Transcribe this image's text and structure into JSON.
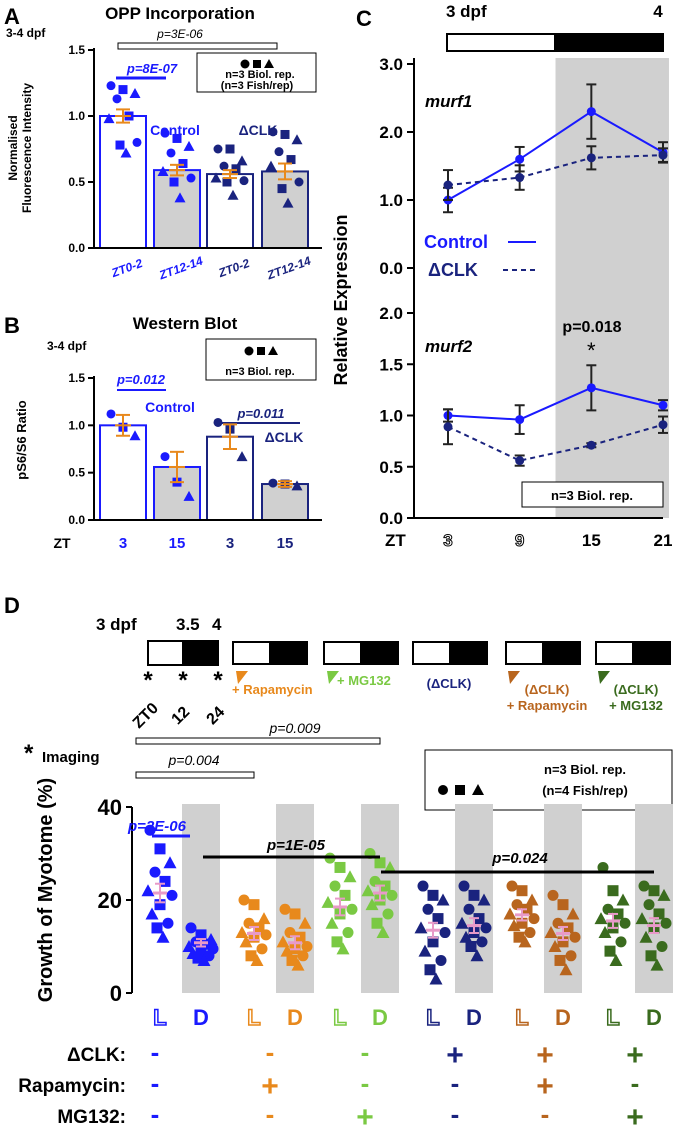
{
  "colors": {
    "control": "#1a1aff",
    "dclk": "#1a237e",
    "rapamycin": "#e8891c",
    "mg132": "#7ac943",
    "dclk_rapa": "#b8651e",
    "dclk_mg": "#3a6b1e",
    "sem": "#e8891c",
    "mean_mark": "#e89ac8",
    "shade": "#d0d0d0"
  },
  "panelA": {
    "letter": "A",
    "title": "OPP Incorporation",
    "stage": "3-4 dpf",
    "ylabel_line1": "Normalised",
    "ylabel_line2": "Fluorescence Intensity",
    "p_overall": "p=3E-06",
    "p_control": "p=8E-07",
    "legend_line1": "n=3 Biol. rep.",
    "legend_line2": "(n=3 Fish/rep)",
    "label_control": "Control",
    "label_dclk": "ΔCLK",
    "yticks": [
      "0.0",
      "0.5",
      "1.0",
      "1.5"
    ],
    "xticks": [
      "ZT0-2",
      "ZT12-14",
      "ZT0-2",
      "ZT12-14"
    ]
  },
  "panelB": {
    "letter": "B",
    "title": "Western Blot",
    "stage": "3-4 dpf",
    "ylabel": "pS6/S6 Ratio",
    "p_control": "p=0.012",
    "p_dclk": "p=0.011",
    "legend": "n=3 Biol. rep.",
    "label_control": "Control",
    "label_dclk": "ΔCLK",
    "zt_label": "ZT",
    "yticks": [
      "0.0",
      "0.5",
      "1.0",
      "1.5"
    ],
    "xticks": [
      "3",
      "15",
      "3",
      "15"
    ]
  },
  "panelC": {
    "letter": "C",
    "stage_start": "3 dpf",
    "stage_end": "4",
    "ylabel": "Relative Expression",
    "gene1": "murf1",
    "gene2": "murf2",
    "legend_control": "Control",
    "legend_dclk": "ΔCLK",
    "p_label": "p=0.018",
    "star": "*",
    "n_label": "n=3 Biol. rep.",
    "zt_label": "ZT",
    "yticks_top": [
      "0.0",
      "1.0",
      "2.0",
      "3.0"
    ],
    "yticks_bottom": [
      "0.0",
      "0.5",
      "1.0",
      "1.5",
      "2.0"
    ],
    "xticks": [
      "3",
      "9",
      "15",
      "21"
    ]
  },
  "panelD": {
    "letter": "D",
    "timeline_dpf": "3 dpf",
    "timeline_mid": "3.5",
    "timeline_end": "4",
    "zt_ticks": [
      "ZT0",
      "12",
      "24"
    ],
    "imaging_label": "Imaging",
    "treat_rapa": "+ Rapamycin",
    "treat_mg": "+ MG132",
    "treat_dclk": "(ΔCLK)",
    "treat_dclk_rapa_1": "(ΔCLK)",
    "treat_dclk_rapa_2": "+ Rapamycin",
    "treat_dclk_mg_1": "(ΔCLK)",
    "treat_dclk_mg_2": "+ MG132",
    "p_009": "p=0.009",
    "p_004": "p=0.004",
    "p_2e06": "p=2E-06",
    "p_1e05": "p=1E-05",
    "p_024": "p=0.024",
    "legend_line1": "n=3 Biol. rep.",
    "legend_line2": "(n=4 Fish/rep)",
    "ylabel": "Growth of Myotome (%)",
    "yticks": [
      "0",
      "20",
      "40"
    ],
    "lane_labels": [
      "L",
      "D",
      "L",
      "D",
      "L",
      "D",
      "L",
      "D",
      "L",
      "D",
      "L",
      "D"
    ],
    "row_labels": [
      "ΔCLK:",
      "Rapamycin:",
      "MG132:"
    ],
    "signs_dclk": [
      "-",
      "-",
      "-",
      "+",
      "+",
      "+"
    ],
    "signs_rapa": [
      "-",
      "+",
      "-",
      "-",
      "+",
      "-"
    ],
    "signs_mg": [
      "-",
      "-",
      "+",
      "-",
      "-",
      "+"
    ]
  },
  "chart_data": [
    {
      "type": "bar",
      "title": "OPP Incorporation",
      "ylabel": "Normalised Fluorescence Intensity",
      "categories": [
        "ZT0-2",
        "ZT12-14",
        "ZT0-2",
        "ZT12-14"
      ],
      "values": [
        1.0,
        0.59,
        0.56,
        0.58
      ],
      "sem": [
        0.05,
        0.04,
        0.03,
        0.06
      ],
      "ylim": [
        0,
        1.5
      ],
      "points": [
        [
          1.23,
          1.2,
          1.17,
          1.13,
          1.0,
          0.98,
          0.8,
          0.78,
          0.72
        ],
        [
          0.87,
          0.83,
          0.77,
          0.72,
          0.64,
          0.58,
          0.53,
          0.5,
          0.38
        ],
        [
          0.75,
          0.75,
          0.66,
          0.62,
          0.6,
          0.53,
          0.51,
          0.5,
          0.4
        ],
        [
          0.88,
          0.86,
          0.82,
          0.73,
          0.67,
          0.62,
          0.5,
          0.45,
          0.34
        ]
      ]
    },
    {
      "type": "bar",
      "title": "Western Blot",
      "ylabel": "pS6/S6 Ratio",
      "categories": [
        "3",
        "15",
        "3",
        "15"
      ],
      "values": [
        1.0,
        0.56,
        0.88,
        0.38
      ],
      "sem": [
        0.11,
        0.16,
        0.13,
        0.03
      ],
      "ylim": [
        0,
        1.5
      ],
      "points": [
        [
          1.12,
          0.98,
          0.89
        ],
        [
          0.67,
          0.4,
          0.25
        ],
        [
          1.03,
          0.96,
          0.67
        ],
        [
          0.39,
          0.38,
          0.36
        ]
      ]
    },
    {
      "type": "line",
      "title": "murf1",
      "ylabel": "Relative Expression",
      "x": [
        3,
        9,
        15,
        21
      ],
      "ylim": [
        0,
        3
      ],
      "series": [
        {
          "name": "Control",
          "values": [
            1.0,
            1.6,
            2.3,
            1.7
          ],
          "sem": [
            0.18,
            0.18,
            0.4,
            0.15
          ]
        },
        {
          "name": "ΔCLK",
          "values": [
            1.22,
            1.33,
            1.62,
            1.66
          ],
          "sem": [
            0.22,
            0.18,
            0.17,
            0.1
          ]
        }
      ]
    },
    {
      "type": "line",
      "title": "murf2",
      "ylabel": "Relative Expression",
      "x": [
        3,
        9,
        15,
        21
      ],
      "ylim": [
        0,
        2
      ],
      "series": [
        {
          "name": "Control",
          "values": [
            1.0,
            0.96,
            1.27,
            1.1
          ],
          "sem": [
            0.06,
            0.14,
            0.22,
            0.05
          ]
        },
        {
          "name": "ΔCLK",
          "values": [
            0.89,
            0.56,
            0.71,
            0.91
          ],
          "sem": [
            0.17,
            0.05,
            0.02,
            0.08
          ]
        }
      ]
    },
    {
      "type": "scatter",
      "ylabel": "Growth of Myotome (%)",
      "categories": [
        "L",
        "D",
        "L",
        "D",
        "L",
        "D",
        "L",
        "D",
        "L",
        "D",
        "L",
        "D"
      ],
      "means": [
        21.5,
        10.8,
        12.8,
        10.8,
        18.5,
        21.5,
        13.5,
        14.5,
        16.8,
        12.8,
        15.5,
        14.5
      ],
      "sem": [
        2.0,
        0.8,
        1.4,
        1.4,
        1.8,
        1.6,
        1.6,
        1.6,
        1.2,
        1.4,
        1.5,
        1.6
      ],
      "ylim": [
        0,
        40
      ],
      "points": [
        [
          35,
          31,
          28,
          26,
          24,
          22,
          21,
          19,
          17,
          15,
          14,
          12
        ],
        [
          14,
          12.5,
          11.5,
          11,
          10.5,
          10,
          9.5,
          9,
          8.5,
          8,
          7.5,
          7
        ],
        [
          20,
          19,
          16,
          15,
          14,
          13,
          12.5,
          12,
          11,
          9.5,
          8,
          7
        ],
        [
          18,
          17,
          15,
          13,
          12,
          11,
          10,
          9.5,
          9,
          8,
          7,
          6
        ],
        [
          29,
          27,
          25,
          23,
          21,
          19.5,
          18,
          17,
          15,
          13,
          11,
          9.5
        ],
        [
          30,
          28,
          27,
          24,
          23,
          22,
          21,
          20,
          19,
          17,
          15,
          13
        ],
        [
          23,
          21,
          20,
          18,
          16,
          14,
          13,
          11,
          9,
          7,
          5,
          3
        ],
        [
          23,
          21,
          20,
          18,
          16,
          15,
          14,
          13,
          12,
          11,
          10,
          8
        ],
        [
          23,
          22,
          20,
          19,
          18,
          17,
          16,
          15,
          14.5,
          13,
          12,
          11
        ],
        [
          21,
          19,
          17,
          15,
          14,
          13,
          12,
          11,
          10,
          8,
          7,
          5
        ],
        [
          27,
          22,
          20,
          18,
          17,
          16,
          15,
          14,
          13,
          11,
          9,
          7
        ],
        [
          23,
          22,
          21,
          19,
          17,
          16,
          15,
          14,
          12,
          10,
          8,
          6
        ]
      ]
    }
  ]
}
